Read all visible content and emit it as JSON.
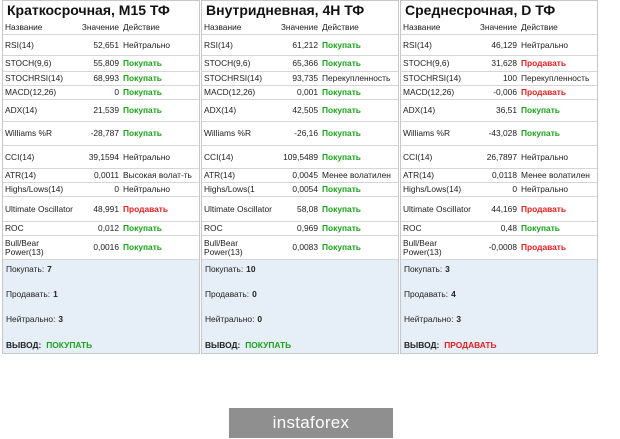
{
  "headers": {
    "name": "Название",
    "value": "Значение",
    "action": "Действие"
  },
  "panels": [
    {
      "title": "Краткосрочная, M15 ТФ",
      "rows": [
        {
          "name": "RSI(14)",
          "value": "52,651",
          "action": "Нейтрально",
          "type": "neutral"
        },
        {
          "name": "STOCH(9,6)",
          "value": "55,809",
          "action": "Покупать",
          "type": "buy"
        },
        {
          "name": "STOCHRSI(14)",
          "value": "68,993",
          "action": "Покупать",
          "type": "buy"
        },
        {
          "name": "MACD(12,26)",
          "value": "0",
          "action": "Покупать",
          "type": "buy"
        },
        {
          "name": "ADX(14)",
          "value": "21,539",
          "action": "Покупать",
          "type": "buy"
        },
        {
          "name": "Williams %R",
          "value": "-28,787",
          "action": "Покупать",
          "type": "buy"
        },
        {
          "name": "CCI(14)",
          "value": "39,1594",
          "action": "Нейтрально",
          "type": "neutral"
        },
        {
          "name": "ATR(14)",
          "value": "0,0011",
          "action": "Высокая волат-ть",
          "type": "over"
        },
        {
          "name": "Highs/Lows(14)",
          "value": "0",
          "action": "Нейтрально",
          "type": "neutral"
        },
        {
          "name": "Ultimate Oscillator",
          "value": "48,991",
          "action": "Продавать",
          "type": "sell"
        },
        {
          "name": "ROC",
          "value": "0,012",
          "action": "Покупать",
          "type": "buy"
        },
        {
          "name": "Bull/Bear Power(13)",
          "value": "0,0016",
          "action": "Покупать",
          "type": "buy"
        }
      ],
      "summary": {
        "buy_label": "Покупать:",
        "buy": "7",
        "sell_label": "Продавать:",
        "sell": "1",
        "neutral_label": "Нейтрально:",
        "neutral": "3",
        "conclusion_label": "ВЫВОД:",
        "conclusion": "ПОКУПАТЬ",
        "conclusion_type": "buy"
      }
    },
    {
      "title": "Внутридневная, 4H ТФ",
      "rows": [
        {
          "name": "RSI(14)",
          "value": "61,212",
          "action": "Покупать",
          "type": "buy"
        },
        {
          "name": "STOCH(9,6)",
          "value": "65,366",
          "action": "Покупать",
          "type": "buy"
        },
        {
          "name": "STOCHRSI(14)",
          "value": "93,735",
          "action": "Перекупленность",
          "type": "over"
        },
        {
          "name": "MACD(12,26)",
          "value": "0,001",
          "action": "Покупать",
          "type": "buy"
        },
        {
          "name": "ADX(14)",
          "value": "42,505",
          "action": "Покупать",
          "type": "buy"
        },
        {
          "name": "Williams %R",
          "value": "-26,16",
          "action": "Покупать",
          "type": "buy"
        },
        {
          "name": "CCI(14)",
          "value": "109,5489",
          "action": "Покупать",
          "type": "buy"
        },
        {
          "name": "ATR(14)",
          "value": "0,0045",
          "action": "Менее волатилен",
          "type": "over"
        },
        {
          "name": "Highs/Lows(1",
          "value": "0,0054",
          "action": "Покупать",
          "type": "buy"
        },
        {
          "name": "Ultimate Oscillator",
          "value": "58,08",
          "action": "Покупать",
          "type": "buy"
        },
        {
          "name": "ROC",
          "value": "0,969",
          "action": "Покупать",
          "type": "buy"
        },
        {
          "name": "Bull/Bear Power(13)",
          "value": "0,0083",
          "action": "Покупать",
          "type": "buy"
        }
      ],
      "summary": {
        "buy_label": "Покупать:",
        "buy": "10",
        "sell_label": "Продавать:",
        "sell": "0",
        "neutral_label": "Нейтрально:",
        "neutral": "0",
        "conclusion_label": "ВЫВОД:",
        "conclusion": "ПОКУПАТЬ",
        "conclusion_type": "buy"
      }
    },
    {
      "title": "Среднесрочная, D ТФ",
      "rows": [
        {
          "name": "RSI(14)",
          "value": "46,129",
          "action": "Нейтрально",
          "type": "neutral"
        },
        {
          "name": "STOCH(9,6)",
          "value": "31,628",
          "action": "Продавать",
          "type": "sell"
        },
        {
          "name": "STOCHRSI(14)",
          "value": "100",
          "action": "Перекупленность",
          "type": "over"
        },
        {
          "name": "MACD(12,26)",
          "value": "-0,006",
          "action": "Продавать",
          "type": "sell"
        },
        {
          "name": "ADX(14)",
          "value": "36,51",
          "action": "Покупать",
          "type": "buy"
        },
        {
          "name": "Williams %R",
          "value": "-43,028",
          "action": "Покупать",
          "type": "buy"
        },
        {
          "name": "CCI(14)",
          "value": "26,7897",
          "action": "Нейтрально",
          "type": "neutral"
        },
        {
          "name": "ATR(14)",
          "value": "0,0118",
          "action": "Менее волатилен",
          "type": "over"
        },
        {
          "name": "Highs/Lows(14)",
          "value": "0",
          "action": "Нейтрально",
          "type": "neutral"
        },
        {
          "name": "Ultimate Oscillator",
          "value": "44,169",
          "action": "Продавать",
          "type": "sell"
        },
        {
          "name": "ROC",
          "value": "0,48",
          "action": "Покупать",
          "type": "buy"
        },
        {
          "name": "Bull/Bear Power(13)",
          "value": "-0,0008",
          "action": "Продавать",
          "type": "sell"
        }
      ],
      "summary": {
        "buy_label": "Покупать:",
        "buy": "3",
        "sell_label": "Продавать:",
        "sell": "4",
        "neutral_label": "Нейтрально:",
        "neutral": "3",
        "conclusion_label": "ВЫВОД:",
        "conclusion": "ПРОДАВАТЬ",
        "conclusion_type": "sell"
      }
    }
  ],
  "logo": {
    "text": "instaforex"
  }
}
